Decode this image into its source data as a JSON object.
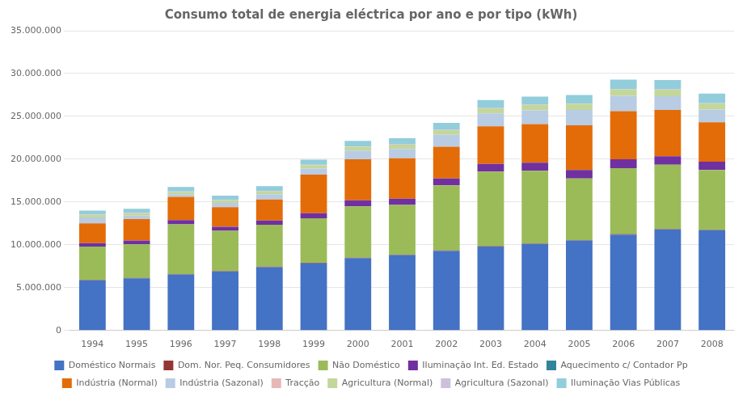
{
  "chart_data": {
    "type": "bar",
    "title": "Consumo total de energia eléctrica por ano e por tipo (kWh)",
    "categories": [
      "1994",
      "1995",
      "1996",
      "1997",
      "1998",
      "1999",
      "2000",
      "2001",
      "2002",
      "2003",
      "2004",
      "2005",
      "2006",
      "2007",
      "2008"
    ],
    "series": [
      {
        "name": "Doméstico Normais",
        "color": "#4472C4",
        "values": [
          5850000,
          6100000,
          6550000,
          6900000,
          7400000,
          7850000,
          8450000,
          8800000,
          9300000,
          9800000,
          10100000,
          10500000,
          11200000,
          11800000,
          11700000
        ]
      },
      {
        "name": "Dom. Nor. Peq. Consumidores",
        "color": "#943634",
        "values": [
          50000,
          50000,
          50000,
          50000,
          50000,
          50000,
          50000,
          50000,
          50000,
          50000,
          50000,
          50000,
          50000,
          50000,
          50000
        ]
      },
      {
        "name": "Não Doméstico",
        "color": "#9BBB59",
        "values": [
          3900000,
          3900000,
          5800000,
          4700000,
          4900000,
          5200000,
          6000000,
          5800000,
          7600000,
          8700000,
          8500000,
          7200000,
          7700000,
          7500000,
          7000000
        ]
      },
      {
        "name": "Iluminação Int. Ed. Estado",
        "color": "#7030A0",
        "values": [
          400000,
          450000,
          500000,
          450000,
          500000,
          600000,
          700000,
          750000,
          800000,
          900000,
          950000,
          1000000,
          1050000,
          1000000,
          950000
        ]
      },
      {
        "name": "Aquecimento c/ Contador Pp",
        "color": "#31849B",
        "values": [
          0,
          0,
          0,
          0,
          0,
          0,
          0,
          0,
          0,
          0,
          0,
          0,
          0,
          0,
          0
        ]
      },
      {
        "name": "Indústria (Normal)",
        "color": "#E36C09",
        "values": [
          2300000,
          2500000,
          2700000,
          2300000,
          2450000,
          4500000,
          4800000,
          4700000,
          3700000,
          4400000,
          4500000,
          5200000,
          5600000,
          5400000,
          4600000
        ]
      },
      {
        "name": "Indústria (Sazonal)",
        "color": "#B8CCE4",
        "values": [
          700000,
          400000,
          300000,
          500000,
          600000,
          700000,
          1000000,
          1100000,
          1400000,
          1500000,
          1600000,
          1800000,
          1800000,
          1600000,
          1500000
        ]
      },
      {
        "name": "Tracção",
        "color": "#E6B8B7",
        "values": [
          0,
          0,
          0,
          0,
          0,
          0,
          0,
          0,
          0,
          0,
          0,
          0,
          0,
          0,
          0
        ]
      },
      {
        "name": "Agricultura (Normal)",
        "color": "#C4D79B",
        "values": [
          300000,
          300000,
          300000,
          300000,
          350000,
          400000,
          450000,
          500000,
          550000,
          600000,
          650000,
          700000,
          750000,
          750000,
          700000
        ]
      },
      {
        "name": "Agricultura (Sazonal)",
        "color": "#CCC0DA",
        "values": [
          50000,
          50000,
          50000,
          50000,
          50000,
          50000,
          50000,
          50000,
          50000,
          50000,
          50000,
          50000,
          50000,
          50000,
          50000
        ]
      },
      {
        "name": "Iluminação Vias Públicas",
        "color": "#92CDDC",
        "values": [
          450000,
          450000,
          500000,
          500000,
          550000,
          600000,
          650000,
          700000,
          800000,
          900000,
          900000,
          1000000,
          1100000,
          1100000,
          1100000
        ]
      }
    ],
    "ylim": [
      0,
      35000000
    ],
    "yticks": [
      0,
      {
        "value": 5000000,
        "label": "5.000.000"
      },
      {
        "value": 10000000,
        "label": "10.000.000"
      },
      {
        "value": 15000000,
        "label": "15.000.000"
      },
      {
        "value": 20000000,
        "label": "20.000.000"
      },
      {
        "value": 25000000,
        "label": "25.000.000"
      },
      {
        "value": 30000000,
        "label": "30.000.000"
      },
      {
        "value": 35000000,
        "label": "35.000.000"
      }
    ],
    "stacked": true,
    "grid": true,
    "legend": "bottom"
  }
}
